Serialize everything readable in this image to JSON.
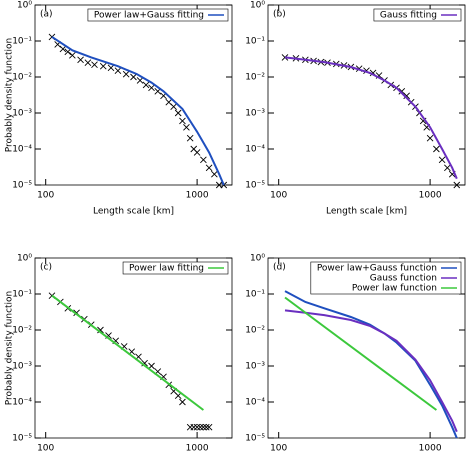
{
  "chart_data": [
    {
      "type": "scatter",
      "label": "(a)",
      "xlabel": "Length scale [km]",
      "ylabel": "Probably density function",
      "xlim": [
        85,
        1700
      ],
      "ylim": [
        1e-05,
        1
      ],
      "xticks": [
        100,
        1000
      ],
      "yticks": [
        {
          "value": 1e-05,
          "label": "10⁻⁵"
        },
        {
          "value": 0.0001,
          "label": "10⁻⁴"
        },
        {
          "value": 0.001,
          "label": "10⁻³"
        },
        {
          "value": 0.01,
          "label": "10⁻²"
        },
        {
          "value": 0.1,
          "label": "10⁻¹"
        },
        {
          "value": 1,
          "label": "10⁰"
        }
      ],
      "log_x": true,
      "log_y": true,
      "legend": "upper right",
      "series": [
        {
          "style": "cross",
          "color": "#000000",
          "x": [
            110,
            120,
            130,
            140,
            150,
            170,
            190,
            210,
            240,
            270,
            300,
            340,
            380,
            420,
            460,
            500,
            550,
            600,
            650,
            700,
            750,
            800,
            850,
            900,
            950,
            1000,
            1100,
            1200,
            1300,
            1400,
            1500
          ],
          "values": [
            0.13,
            0.08,
            0.06,
            0.05,
            0.04,
            0.03,
            0.025,
            0.022,
            0.02,
            0.018,
            0.015,
            0.012,
            0.01,
            0.008,
            0.006,
            0.005,
            0.004,
            0.003,
            0.002,
            0.0015,
            0.001,
            0.0006,
            0.0004,
            0.0002,
            0.0001,
            8e-05,
            5e-05,
            3e-05,
            2e-05,
            1e-05,
            1e-05
          ]
        },
        {
          "style": "line",
          "name": "Power law+Gauss fitting",
          "color": "#1f4fbf",
          "x": [
            110,
            150,
            200,
            300,
            400,
            500,
            600,
            800,
            1000,
            1200,
            1400,
            1500
          ],
          "values": [
            0.13,
            0.055,
            0.035,
            0.02,
            0.012,
            0.007,
            0.004,
            0.0013,
            0.0003,
            8e-05,
            2e-05,
            1e-05
          ]
        }
      ]
    },
    {
      "type": "scatter",
      "label": "(b)",
      "xlabel": "Length scale [km]",
      "xlim": [
        85,
        1700
      ],
      "ylim": [
        1e-05,
        1
      ],
      "xticks": [
        100,
        1000
      ],
      "yticks": [
        {
          "value": 1e-05,
          "label": "10⁻⁵"
        },
        {
          "value": 0.0001,
          "label": "10⁻⁴"
        },
        {
          "value": 0.001,
          "label": "10⁻³"
        },
        {
          "value": 0.01,
          "label": "10⁻²"
        },
        {
          "value": 0.1,
          "label": "10⁻¹"
        },
        {
          "value": 1,
          "label": "10⁰"
        }
      ],
      "log_x": true,
      "log_y": true,
      "legend": "upper right",
      "series": [
        {
          "style": "cross",
          "color": "#000000",
          "x": [
            110,
            130,
            150,
            170,
            190,
            210,
            240,
            270,
            300,
            340,
            380,
            420,
            460,
            500,
            550,
            600,
            650,
            700,
            750,
            800,
            850,
            900,
            950,
            1000,
            1100,
            1200,
            1300,
            1400,
            1500
          ],
          "values": [
            0.035,
            0.033,
            0.03,
            0.028,
            0.026,
            0.025,
            0.023,
            0.021,
            0.019,
            0.017,
            0.015,
            0.013,
            0.011,
            0.008,
            0.006,
            0.005,
            0.004,
            0.003,
            0.002,
            0.0015,
            0.001,
            0.0006,
            0.0004,
            0.0002,
            0.0001,
            5e-05,
            3e-05,
            2e-05,
            1e-05
          ]
        },
        {
          "style": "line",
          "name": "Gauss fitting",
          "color": "#6a2fc0",
          "x": [
            110,
            150,
            200,
            300,
            400,
            500,
            600,
            800,
            1000,
            1200,
            1400,
            1500
          ],
          "values": [
            0.035,
            0.03,
            0.026,
            0.019,
            0.013,
            0.008,
            0.005,
            0.0015,
            0.0004,
            0.0001,
            3e-05,
            1.5e-05
          ]
        }
      ]
    },
    {
      "type": "scatter",
      "label": "(c)",
      "ylabel": "Probably density function",
      "xlim": [
        85,
        1700
      ],
      "ylim": [
        1e-05,
        1
      ],
      "xticks": [
        100,
        1000
      ],
      "yticks": [
        {
          "value": 1e-05,
          "label": "10⁻⁵"
        },
        {
          "value": 0.0001,
          "label": "10⁻⁴"
        },
        {
          "value": 0.001,
          "label": "10⁻³"
        },
        {
          "value": 0.01,
          "label": "10⁻²"
        },
        {
          "value": 0.1,
          "label": "10⁻¹"
        },
        {
          "value": 1,
          "label": "10⁰"
        }
      ],
      "log_x": true,
      "log_y": true,
      "legend": "upper right",
      "series": [
        {
          "style": "cross",
          "color": "#000000",
          "x": [
            110,
            125,
            140,
            160,
            180,
            200,
            230,
            260,
            290,
            330,
            370,
            410,
            450,
            500,
            550,
            600,
            650,
            700,
            750,
            800,
            900,
            950,
            1000,
            1050,
            1100,
            1150,
            1200
          ],
          "values": [
            0.09,
            0.06,
            0.04,
            0.03,
            0.02,
            0.014,
            0.01,
            0.007,
            0.005,
            0.0035,
            0.0025,
            0.0018,
            0.0012,
            0.001,
            0.0007,
            0.0005,
            0.0003,
            0.0002,
            0.00015,
            0.0001,
            2e-05,
            2e-05,
            2e-05,
            2e-05,
            2e-05,
            2e-05,
            2e-05
          ]
        },
        {
          "style": "line",
          "name": "Power law fitting",
          "color": "#3cc83c",
          "x": [
            110,
            1100
          ],
          "values": [
            0.09,
            6e-05
          ]
        }
      ]
    },
    {
      "type": "line",
      "label": "(d)",
      "xlim": [
        85,
        1700
      ],
      "ylim": [
        1e-05,
        1
      ],
      "xticks": [
        100,
        1000
      ],
      "yticks": [
        {
          "value": 1e-05,
          "label": "10⁻⁵"
        },
        {
          "value": 0.0001,
          "label": "10⁻⁴"
        },
        {
          "value": 0.001,
          "label": "10⁻³"
        },
        {
          "value": 0.01,
          "label": "10⁻²"
        },
        {
          "value": 0.1,
          "label": "10⁻¹"
        },
        {
          "value": 1,
          "label": "10⁰"
        }
      ],
      "log_x": true,
      "log_y": true,
      "legend": "upper right",
      "series": [
        {
          "style": "line",
          "name": "Power law+Gauss function",
          "color": "#1f4fbf",
          "x": [
            110,
            150,
            200,
            300,
            400,
            500,
            600,
            800,
            1000,
            1200,
            1400,
            1500
          ],
          "values": [
            0.12,
            0.06,
            0.04,
            0.023,
            0.014,
            0.008,
            0.0045,
            0.0014,
            0.0003,
            8e-05,
            2e-05,
            1e-05
          ]
        },
        {
          "style": "line",
          "name": "Gauss function",
          "color": "#6a2fc0",
          "x": [
            110,
            150,
            200,
            300,
            400,
            500,
            600,
            800,
            1000,
            1200,
            1400,
            1500
          ],
          "values": [
            0.035,
            0.03,
            0.026,
            0.019,
            0.013,
            0.008,
            0.005,
            0.0015,
            0.0004,
            0.0001,
            3e-05,
            1.5e-05
          ]
        },
        {
          "style": "line",
          "name": "Power law function",
          "color": "#3cc83c",
          "x": [
            110,
            1100
          ],
          "values": [
            0.08,
            6e-05
          ]
        }
      ]
    }
  ]
}
